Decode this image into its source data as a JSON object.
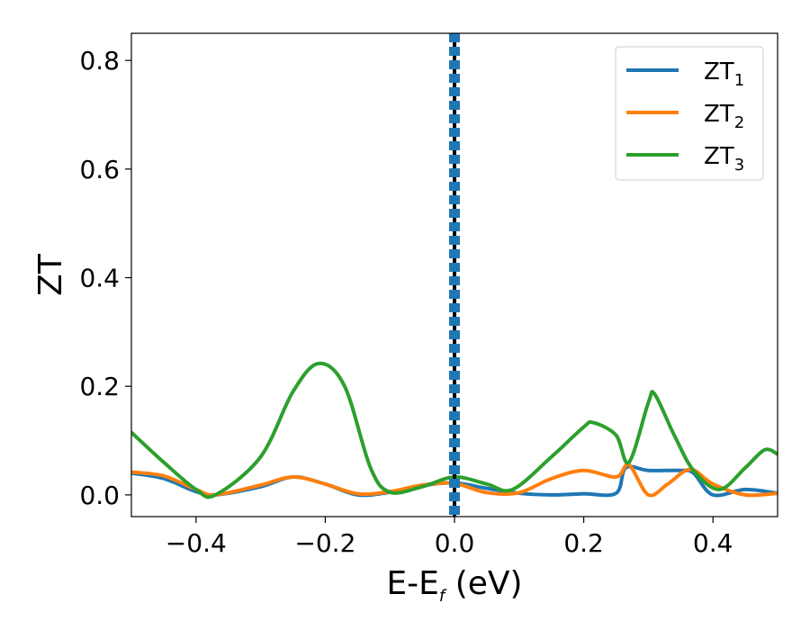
{
  "chart_data": {
    "type": "line",
    "xlabel": "E-E",
    "xlabel_sub": "f",
    "xlabel_unit": " (eV)",
    "ylabel": "ZT",
    "xlim": [
      -0.5,
      0.5
    ],
    "ylim": [
      -0.04,
      0.85
    ],
    "xticks": [
      -0.4,
      -0.2,
      0.0,
      0.2,
      0.4
    ],
    "xtick_labels": [
      "−0.4",
      "−0.2",
      "0.0",
      "0.2",
      "0.4"
    ],
    "yticks": [
      0.0,
      0.2,
      0.4,
      0.6,
      0.8
    ],
    "ytick_labels": [
      "0.0",
      "0.2",
      "0.4",
      "0.6",
      "0.8"
    ],
    "grid": false,
    "legend_position": "top-right",
    "vline": {
      "x": 0.0,
      "color": "#000000",
      "dashed_overlay_color": "#1f77b4"
    },
    "series": [
      {
        "name": "ZT",
        "name_sub": "1",
        "color": "#1f77b4",
        "x": [
          -0.5,
          -0.45,
          -0.4,
          -0.37,
          -0.3,
          -0.25,
          -0.2,
          -0.15,
          -0.1,
          -0.05,
          0.0,
          0.05,
          0.1,
          0.15,
          0.2,
          0.25,
          0.265,
          0.3,
          0.35,
          0.37,
          0.4,
          0.45,
          0.5
        ],
        "y": [
          0.04,
          0.03,
          0.006,
          0.0,
          0.015,
          0.033,
          0.02,
          0.0,
          0.005,
          0.017,
          0.022,
          0.012,
          0.003,
          0.0,
          0.002,
          0.003,
          0.05,
          0.045,
          0.045,
          0.04,
          0.0,
          0.01,
          0.003
        ]
      },
      {
        "name": "ZT",
        "name_sub": "2",
        "color": "#ff7f0e",
        "x": [
          -0.5,
          -0.45,
          -0.4,
          -0.37,
          -0.3,
          -0.25,
          -0.2,
          -0.15,
          -0.1,
          -0.05,
          0.0,
          0.05,
          0.1,
          0.15,
          0.2,
          0.25,
          0.27,
          0.3,
          0.33,
          0.365,
          0.4,
          0.45,
          0.5
        ],
        "y": [
          0.042,
          0.035,
          0.01,
          0.0,
          0.018,
          0.033,
          0.02,
          0.002,
          0.006,
          0.018,
          0.021,
          0.004,
          0.004,
          0.03,
          0.045,
          0.033,
          0.055,
          0.0,
          0.02,
          0.047,
          0.02,
          0.0,
          0.003
        ]
      },
      {
        "name": "ZT",
        "name_sub": "3",
        "color": "#2ca02c",
        "x": [
          -0.5,
          -0.45,
          -0.4,
          -0.37,
          -0.3,
          -0.25,
          -0.21,
          -0.17,
          -0.13,
          -0.1,
          -0.05,
          0.0,
          0.05,
          0.09,
          0.15,
          0.2,
          0.215,
          0.25,
          0.27,
          0.3,
          0.31,
          0.34,
          0.37,
          0.41,
          0.45,
          0.48,
          0.5
        ],
        "y": [
          0.115,
          0.06,
          0.01,
          0.0,
          0.07,
          0.19,
          0.242,
          0.2,
          0.05,
          0.005,
          0.015,
          0.033,
          0.02,
          0.01,
          0.07,
          0.125,
          0.133,
          0.11,
          0.06,
          0.17,
          0.185,
          0.11,
          0.045,
          0.01,
          0.05,
          0.083,
          0.075
        ]
      }
    ]
  }
}
